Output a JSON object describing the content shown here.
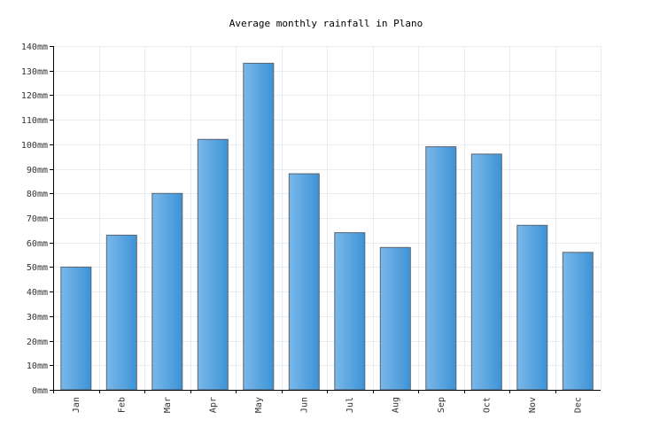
{
  "chart_data": {
    "type": "bar",
    "title": "Average monthly rainfall in Plano",
    "categories": [
      "Jan",
      "Feb",
      "Mar",
      "Apr",
      "May",
      "Jun",
      "Jul",
      "Aug",
      "Sep",
      "Oct",
      "Nov",
      "Dec"
    ],
    "values": [
      50,
      63,
      80,
      102,
      133,
      88,
      64,
      58,
      99,
      96,
      67,
      56
    ],
    "unit": "mm",
    "ylim": [
      0,
      140
    ],
    "ytick_step": 10,
    "xlabel": "",
    "ylabel": "",
    "grid": true,
    "legend": "none",
    "colors": {
      "bar_light": "#7ab8ea",
      "bar_dark": "#3d93d6",
      "bar_stroke": "#5a6470",
      "grid": "#e8ecf0",
      "axis": "#000000"
    }
  }
}
